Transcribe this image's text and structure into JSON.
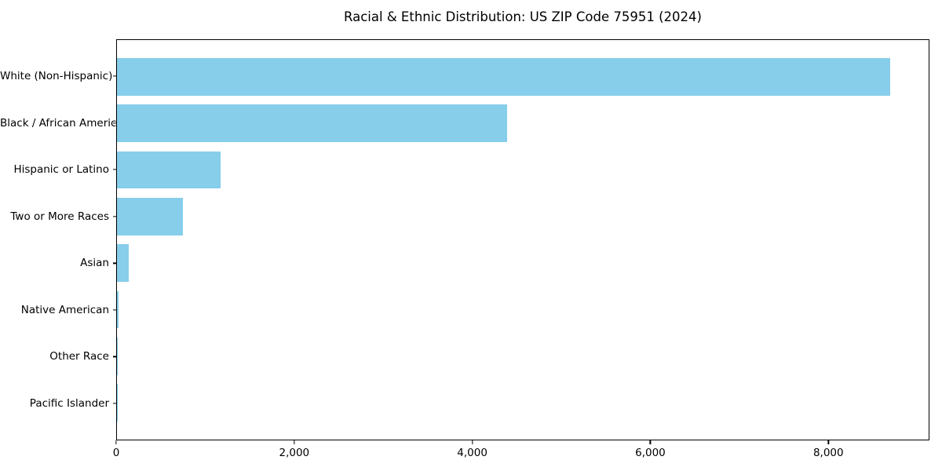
{
  "figure": {
    "background": "#ffffff",
    "plot_border_color": "#000000"
  },
  "chart_data": {
    "type": "bar",
    "orientation": "horizontal",
    "title": "Racial & Ethnic Distribution: US ZIP Code 75951 (2024)",
    "xlabel": "",
    "ylabel": "",
    "categories": [
      "White (Non-Hispanic)",
      "Black / African American",
      "Hispanic or Latino",
      "Two or More Races",
      "Asian",
      "Native American",
      "Other Race",
      "Pacific Islander"
    ],
    "values": [
      8700,
      4390,
      1170,
      745,
      135,
      15,
      8,
      3
    ],
    "bar_color": "#87CEEB",
    "xlim": [
      0,
      9135
    ],
    "x_ticks": [
      0,
      2000,
      4000,
      6000,
      8000
    ],
    "x_tick_labels": [
      "0",
      "2,000",
      "4,000",
      "6,000",
      "8,000"
    ],
    "grid": false,
    "legend": null,
    "axis_color": "#000000",
    "text_color": "#000000"
  }
}
